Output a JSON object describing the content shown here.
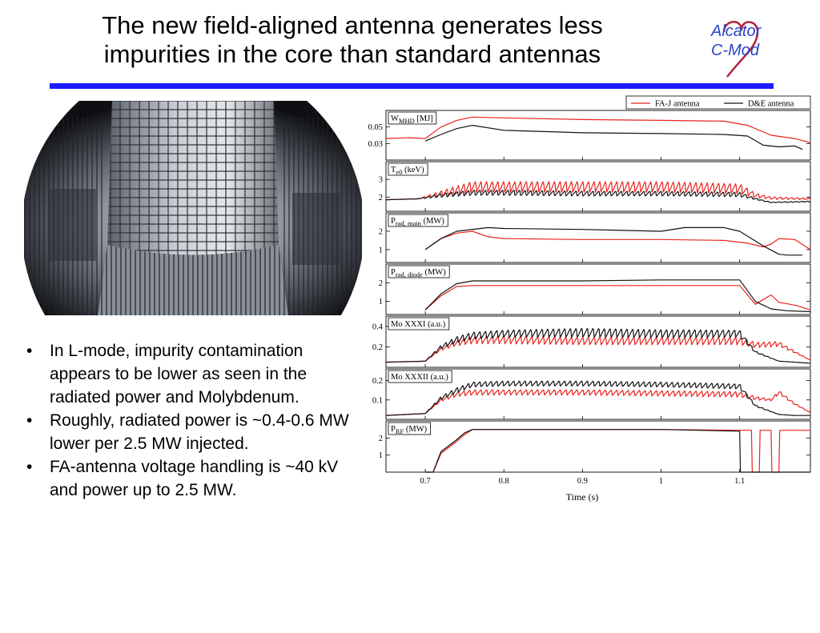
{
  "slide": {
    "title_line1": "The new field-aligned antenna generates less",
    "title_line2": "impurities in the core than standard antennas",
    "logo_line1": "Alcator",
    "logo_line2": "C-Mod",
    "accent_color": "#1c1cff",
    "bullets": [
      "In L-mode, impurity contamination appears to be lower as seen in the radiated power and Molybdenum.",
      "Roughly, radiated power is ~0.4-0.6 MW lower per 2.5 MW injected.",
      "FA-antenna voltage handling is ~40 kV and power up to 2.5 MW."
    ]
  },
  "chart_data": {
    "type": "line",
    "xlabel": "Time (s)",
    "xlim": [
      0.65,
      1.19
    ],
    "x_ticks": [
      "0.7",
      "0.8",
      "0.9",
      "1",
      "1.1"
    ],
    "legend": {
      "placement": "top-right",
      "entries": [
        {
          "name": "FA-J antenna",
          "color": "#e8231e"
        },
        {
          "name": "D&E antenna",
          "color": "#111111"
        }
      ]
    },
    "panels": [
      {
        "label_main": "W",
        "label_sub": "MHD",
        "label_unit": "[MJ]",
        "ylim": [
          0.01,
          0.07
        ],
        "y_ticks": [
          "0.05",
          "0.03"
        ],
        "y_tick_values": [
          0.05,
          0.03
        ],
        "series": [
          {
            "color": "#e8231e",
            "x": [
              0.65,
              0.68,
              0.7,
              0.72,
              0.74,
              0.76,
              0.8,
              0.9,
              1.0,
              1.08,
              1.11,
              1.14,
              1.17,
              1.19
            ],
            "y": [
              0.036,
              0.037,
              0.036,
              0.05,
              0.058,
              0.062,
              0.061,
              0.059,
              0.058,
              0.057,
              0.052,
              0.04,
              0.036,
              0.031
            ]
          },
          {
            "color": "#111111",
            "x": [
              0.7,
              0.72,
              0.74,
              0.76,
              0.8,
              0.9,
              1.0,
              1.08,
              1.11,
              1.13,
              1.15,
              1.17,
              1.18
            ],
            "y": [
              0.033,
              0.041,
              0.048,
              0.052,
              0.046,
              0.043,
              0.042,
              0.041,
              0.039,
              0.028,
              0.026,
              0.027,
              0.023
            ]
          }
        ]
      },
      {
        "label_main": "T",
        "label_sub": "e0",
        "label_unit": "(keV)",
        "ylim": [
          1.2,
          4.0
        ],
        "y_ticks": [
          "3",
          "2"
        ],
        "y_tick_values": [
          3,
          2
        ],
        "series": [
          {
            "color": "#e8231e",
            "saw": true,
            "x": [
              0.65,
              0.69,
              0.72,
              0.74,
              0.76,
              0.8,
              0.9,
              1.0,
              1.1,
              1.12,
              1.14,
              1.19
            ],
            "y": [
              1.85,
              1.9,
              2.2,
              2.4,
              2.6,
              2.6,
              2.6,
              2.6,
              2.5,
              2.1,
              1.95,
              1.9
            ],
            "amp": [
              0,
              0,
              0.35,
              0.55,
              0.65,
              0.65,
              0.65,
              0.65,
              0.6,
              0.3,
              0.15,
              0.1
            ]
          },
          {
            "color": "#111111",
            "saw": true,
            "x": [
              0.65,
              0.69,
              0.72,
              0.76,
              0.8,
              0.9,
              1.0,
              1.1,
              1.12,
              1.14,
              1.19
            ],
            "y": [
              1.85,
              1.9,
              2.1,
              2.25,
              2.25,
              2.2,
              2.2,
              2.15,
              1.9,
              1.7,
              1.75
            ],
            "amp": [
              0,
              0,
              0.25,
              0.35,
              0.35,
              0.32,
              0.3,
              0.3,
              0.1,
              0.05,
              0.05
            ]
          }
        ]
      },
      {
        "label_main": "P",
        "label_sub": "rad, main",
        "label_unit": "(MW)",
        "ylim": [
          0.3,
          3.0
        ],
        "y_ticks": [
          "2",
          "1"
        ],
        "y_tick_values": [
          2,
          1
        ],
        "series": [
          {
            "color": "#e8231e",
            "x": [
              0.7,
              0.72,
              0.74,
              0.76,
              0.78,
              0.8,
              0.9,
              1.0,
              1.08,
              1.11,
              1.13,
              1.14,
              1.15,
              1.17,
              1.19
            ],
            "y": [
              1.0,
              1.6,
              1.9,
              2.0,
              1.7,
              1.6,
              1.55,
              1.55,
              1.5,
              1.35,
              1.15,
              1.3,
              1.6,
              1.55,
              1.0
            ]
          },
          {
            "color": "#111111",
            "x": [
              0.7,
              0.72,
              0.74,
              0.78,
              0.8,
              0.9,
              1.0,
              1.03,
              1.08,
              1.1,
              1.13,
              1.15,
              1.16,
              1.18
            ],
            "y": [
              1.0,
              1.6,
              2.0,
              2.2,
              2.15,
              2.1,
              2.0,
              2.2,
              2.2,
              2.0,
              1.2,
              0.75,
              0.7,
              0.7
            ]
          }
        ]
      },
      {
        "label_main": "P",
        "label_sub": "rad, diode",
        "label_unit": "(MW)",
        "ylim": [
          0.3,
          3.0
        ],
        "y_ticks": [
          "2",
          "1"
        ],
        "y_tick_values": [
          2,
          1
        ],
        "series": [
          {
            "color": "#e8231e",
            "x": [
              0.7,
              0.72,
              0.74,
              0.76,
              0.8,
              0.9,
              1.0,
              1.1,
              1.12,
              1.13,
              1.14,
              1.15,
              1.17,
              1.19
            ],
            "y": [
              0.55,
              1.3,
              1.8,
              1.85,
              1.85,
              1.85,
              1.85,
              1.85,
              0.85,
              1.1,
              1.35,
              0.95,
              0.8,
              0.55
            ]
          },
          {
            "color": "#111111",
            "x": [
              0.7,
              0.72,
              0.74,
              0.76,
              0.8,
              0.9,
              1.0,
              1.1,
              1.12,
              1.14,
              1.16,
              1.19
            ],
            "y": [
              0.55,
              1.4,
              1.95,
              2.1,
              2.1,
              2.1,
              2.15,
              2.15,
              1.0,
              0.6,
              0.5,
              0.45
            ]
          }
        ]
      },
      {
        "label_main": "Mo XXXI",
        "label_sub": "",
        "label_unit": "(a.u.)",
        "ylim": [
          0.0,
          0.5
        ],
        "y_ticks": [
          "0.4",
          "0.2"
        ],
        "y_tick_values": [
          0.4,
          0.2
        ],
        "series": [
          {
            "color": "#e8231e",
            "saw": true,
            "x": [
              0.65,
              0.7,
              0.72,
              0.74,
              0.76,
              0.8,
              0.9,
              1.0,
              1.1,
              1.12,
              1.15,
              1.17,
              1.19
            ],
            "y": [
              0.05,
              0.06,
              0.18,
              0.24,
              0.27,
              0.27,
              0.26,
              0.26,
              0.26,
              0.22,
              0.23,
              0.15,
              0.07
            ],
            "amp": [
              0,
              0,
              0.03,
              0.06,
              0.08,
              0.08,
              0.08,
              0.08,
              0.08,
              0.06,
              0.05,
              0.02,
              0
            ]
          },
          {
            "color": "#111111",
            "saw": true,
            "x": [
              0.65,
              0.7,
              0.72,
              0.74,
              0.76,
              0.8,
              0.9,
              1.0,
              1.1,
              1.12,
              1.15,
              1.17,
              1.19
            ],
            "y": [
              0.05,
              0.06,
              0.2,
              0.27,
              0.31,
              0.33,
              0.34,
              0.33,
              0.33,
              0.15,
              0.06,
              0.05,
              0.04
            ],
            "amp": [
              0,
              0,
              0.04,
              0.07,
              0.08,
              0.08,
              0.1,
              0.09,
              0.08,
              0.02,
              0,
              0,
              0
            ]
          }
        ]
      },
      {
        "label_main": "Mo XXXII",
        "label_sub": "",
        "label_unit": "(a.u.)",
        "ylim": [
          0.0,
          0.26
        ],
        "y_ticks": [
          "0.2",
          "0.1"
        ],
        "y_tick_values": [
          0.2,
          0.1
        ],
        "series": [
          {
            "color": "#e8231e",
            "saw": true,
            "x": [
              0.65,
              0.7,
              0.72,
              0.74,
              0.76,
              0.8,
              0.9,
              1.0,
              1.1,
              1.12,
              1.14,
              1.15,
              1.17,
              1.19
            ],
            "y": [
              0.02,
              0.03,
              0.1,
              0.13,
              0.14,
              0.14,
              0.14,
              0.135,
              0.13,
              0.11,
              0.1,
              0.14,
              0.08,
              0.035
            ],
            "amp": [
              0,
              0,
              0.015,
              0.025,
              0.03,
              0.03,
              0.03,
              0.03,
              0.03,
              0.02,
              0.01,
              0.02,
              0.01,
              0
            ]
          },
          {
            "color": "#111111",
            "saw": true,
            "x": [
              0.65,
              0.7,
              0.72,
              0.74,
              0.76,
              0.8,
              0.9,
              1.0,
              1.1,
              1.12,
              1.15,
              1.17,
              1.19
            ],
            "y": [
              0.02,
              0.03,
              0.11,
              0.15,
              0.18,
              0.185,
              0.185,
              0.18,
              0.17,
              0.07,
              0.025,
              0.02,
              0.02
            ],
            "amp": [
              0,
              0,
              0.02,
              0.03,
              0.03,
              0.03,
              0.03,
              0.03,
              0.03,
              0.01,
              0,
              0,
              0
            ]
          }
        ]
      },
      {
        "label_main": "P",
        "label_sub": "RF",
        "label_unit": "(MW)",
        "ylim": [
          0.0,
          3.0
        ],
        "y_ticks": [
          "2",
          "1"
        ],
        "y_tick_values": [
          2,
          1
        ],
        "series": [
          {
            "color": "#e8231e",
            "x": [
              0.7,
              0.71,
              0.72,
              0.74,
              0.75,
              0.76,
              0.8,
              0.9,
              1.0,
              1.1,
              1.11,
              1.115,
              1.116,
              1.125,
              1.126,
              1.14,
              1.141,
              1.15,
              1.151,
              1.19
            ],
            "y": [
              0,
              0,
              1.1,
              1.8,
              2.2,
              2.5,
              2.5,
              2.5,
              2.5,
              2.45,
              2.45,
              2.45,
              0,
              0,
              2.45,
              2.45,
              0,
              0,
              2.45,
              2.45
            ]
          },
          {
            "color": "#111111",
            "x": [
              0.7,
              0.71,
              0.72,
              0.74,
              0.75,
              0.76,
              0.8,
              0.9,
              1.0,
              1.1,
              1.101,
              1.19
            ],
            "y": [
              0,
              0,
              1.2,
              1.9,
              2.3,
              2.5,
              2.5,
              2.5,
              2.5,
              2.4,
              0,
              0
            ]
          }
        ]
      }
    ]
  }
}
